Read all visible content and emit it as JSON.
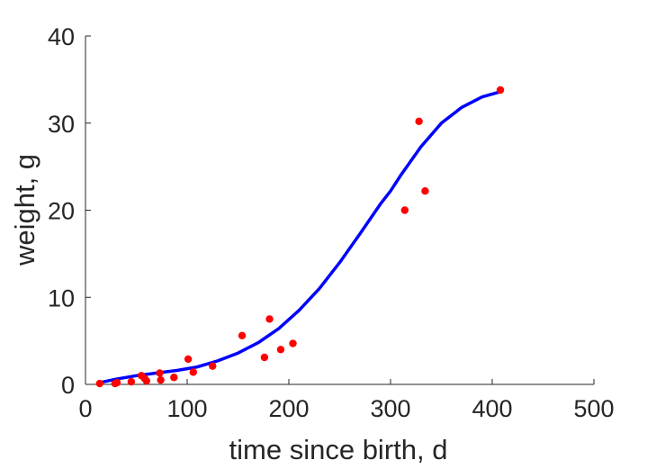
{
  "chart_data": {
    "type": "scatter",
    "xlabel": "time since birth, d",
    "ylabel": "weight, g",
    "xlim": [
      0,
      500
    ],
    "ylim": [
      0,
      40
    ],
    "xticks": [
      0,
      100,
      200,
      300,
      400,
      500
    ],
    "yticks": [
      0,
      10,
      20,
      30,
      40
    ],
    "xtick_labels": [
      "0",
      "100",
      "200",
      "300",
      "400",
      "500"
    ],
    "ytick_labels": [
      "0",
      "10",
      "20",
      "30",
      "40"
    ],
    "grid": false,
    "series": [
      {
        "kind": "scatter",
        "color": "#ff0000",
        "x": [
          14,
          29,
          31,
          45,
          55,
          58,
          60,
          73,
          74,
          87,
          101,
          106,
          125,
          154,
          176,
          181,
          192,
          204,
          314,
          328,
          334,
          408
        ],
        "y": [
          0.1,
          0.1,
          0.2,
          0.3,
          1.0,
          0.7,
          0.4,
          1.3,
          0.5,
          0.8,
          2.9,
          1.4,
          2.1,
          5.6,
          3.1,
          7.5,
          4.0,
          4.7,
          20.0,
          30.2,
          22.2,
          33.8
        ]
      },
      {
        "kind": "line",
        "color": "#0000ff",
        "x": [
          14,
          30,
          50,
          70,
          90,
          110,
          130,
          150,
          170,
          190,
          210,
          230,
          250,
          270,
          290,
          300,
          310,
          330,
          350,
          370,
          390,
          408
        ],
        "y": [
          0.2,
          0.6,
          1.0,
          1.3,
          1.6,
          2.0,
          2.7,
          3.6,
          4.8,
          6.4,
          8.5,
          11.0,
          14.0,
          17.3,
          20.7,
          22.2,
          24.0,
          27.3,
          30.0,
          31.8,
          33.0,
          33.6
        ]
      }
    ]
  }
}
